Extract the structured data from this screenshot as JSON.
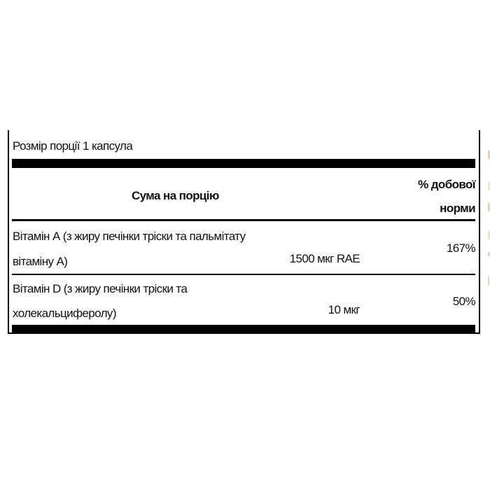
{
  "serving_size": "Розмір порції 1 капсула",
  "header": {
    "amount": "Сума на порцію",
    "daily_value_line1": "% добової",
    "daily_value_line2": "норми"
  },
  "rows": [
    {
      "name_line1": "Вітамін А (з жиру печінки тріски та пальмітату",
      "name_line2": "вітаміну А)",
      "amount": "1500 мкг RAE",
      "dv": "167%"
    },
    {
      "name_line1": "Вітамін D (з жиру печінки тріски та",
      "name_line2": "холекальциферолу)",
      "amount": "10 мкг",
      "dv": "50%"
    }
  ]
}
